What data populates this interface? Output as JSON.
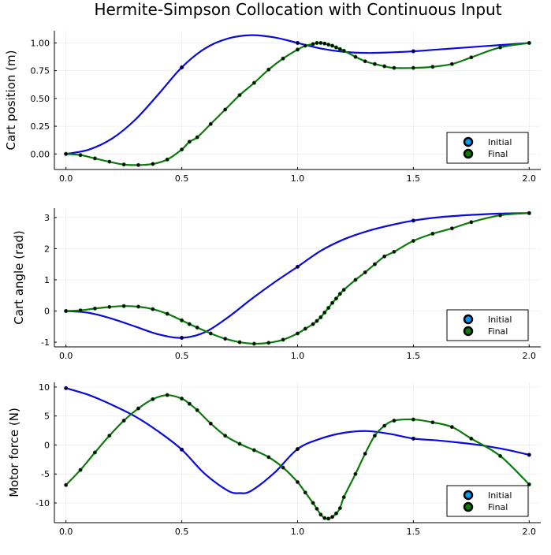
{
  "title": "Hermite-Simpson Collocation with Continuous Input",
  "colors": {
    "initial": "#0a0adb",
    "final": "#0c790c",
    "marker": "#000000"
  },
  "chart_data": [
    {
      "type": "line",
      "ylabel": "Cart position (m)",
      "xlim": [
        -0.05,
        2.05
      ],
      "ylim": [
        -0.14,
        1.11
      ],
      "xticks": [
        0,
        0.5,
        1,
        1.5,
        2
      ],
      "xtick_labels": [
        "0.0",
        "0.5",
        "1.0",
        "1.5",
        "2.0"
      ],
      "yticks": [
        0,
        0.25,
        0.5,
        0.75,
        1
      ],
      "ytick_labels": [
        "0.00",
        "0.25",
        "0.50",
        "0.75",
        "1.00"
      ],
      "legend": {
        "entries": [
          "Initial",
          "Final"
        ],
        "position": "bottom-right"
      },
      "series": [
        {
          "name": "Initial",
          "x": [
            0,
            0.1,
            0.2,
            0.3,
            0.4,
            0.5,
            0.6,
            0.7,
            0.8,
            0.9,
            1.0,
            1.1,
            1.2,
            1.3,
            1.4,
            1.5,
            1.6,
            1.7,
            1.8,
            1.9,
            2.0
          ],
          "y": [
            0,
            0.04,
            0.14,
            0.31,
            0.54,
            0.78,
            0.95,
            1.04,
            1.07,
            1.05,
            1.0,
            0.95,
            0.92,
            0.91,
            0.915,
            0.925,
            0.94,
            0.955,
            0.97,
            0.985,
            1.0
          ],
          "markers_x": [
            0,
            0.5,
            1.0,
            1.5,
            2.0
          ],
          "markers_y": [
            0,
            0.78,
            1.0,
            0.925,
            1.0
          ]
        },
        {
          "name": "Final",
          "x": [
            0,
            0.0625,
            0.125,
            0.1875,
            0.25,
            0.3125,
            0.375,
            0.4375,
            0.5,
            0.5333,
            0.5667,
            0.625,
            0.6875,
            0.75,
            0.8125,
            0.875,
            0.9375,
            1.0,
            1.0333,
            1.0667,
            1.0833,
            1.1,
            1.1167,
            1.1333,
            1.15,
            1.1667,
            1.1833,
            1.2,
            1.25,
            1.2917,
            1.3333,
            1.375,
            1.4167,
            1.5,
            1.5833,
            1.6667,
            1.75,
            1.875,
            2.0
          ],
          "y": [
            0,
            -0.01,
            -0.04,
            -0.07,
            -0.095,
            -0.1,
            -0.09,
            -0.05,
            0.04,
            0.11,
            0.15,
            0.27,
            0.4,
            0.53,
            0.64,
            0.76,
            0.86,
            0.94,
            0.975,
            0.99,
            1.0,
            1.0,
            0.995,
            0.985,
            0.975,
            0.96,
            0.945,
            0.93,
            0.875,
            0.835,
            0.81,
            0.79,
            0.775,
            0.775,
            0.785,
            0.81,
            0.87,
            0.96,
            1.0
          ],
          "markers_x": [
            0,
            0.0625,
            0.125,
            0.1875,
            0.25,
            0.3125,
            0.375,
            0.4375,
            0.5,
            0.5333,
            0.5667,
            0.625,
            0.6875,
            0.75,
            0.8125,
            0.875,
            0.9375,
            1.0,
            1.0333,
            1.0667,
            1.0833,
            1.1,
            1.1167,
            1.1333,
            1.15,
            1.1667,
            1.1833,
            1.2,
            1.25,
            1.2917,
            1.3333,
            1.375,
            1.4167,
            1.5,
            1.5833,
            1.6667,
            1.75,
            1.875,
            2.0
          ],
          "markers_y": [
            0,
            -0.01,
            -0.04,
            -0.07,
            -0.095,
            -0.1,
            -0.09,
            -0.05,
            0.04,
            0.11,
            0.15,
            0.27,
            0.4,
            0.53,
            0.64,
            0.76,
            0.86,
            0.94,
            0.975,
            0.99,
            1.0,
            1.0,
            0.995,
            0.985,
            0.975,
            0.96,
            0.945,
            0.93,
            0.875,
            0.835,
            0.81,
            0.79,
            0.775,
            0.775,
            0.785,
            0.81,
            0.87,
            0.96,
            1.0
          ]
        }
      ]
    },
    {
      "type": "line",
      "ylabel": "Cart angle (rad)",
      "xlim": [
        -0.05,
        2.05
      ],
      "ylim": [
        -1.15,
        3.3
      ],
      "xticks": [
        0,
        0.5,
        1,
        1.5,
        2
      ],
      "xtick_labels": [
        "0.0",
        "0.5",
        "1.0",
        "1.5",
        "2.0"
      ],
      "yticks": [
        -1,
        0,
        1,
        2,
        3
      ],
      "ytick_labels": [
        "-1",
        "0",
        "1",
        "2",
        "3"
      ],
      "legend": {
        "entries": [
          "Initial",
          "Final"
        ],
        "position": "bottom-right"
      },
      "series": [
        {
          "name": "Initial",
          "x": [
            0,
            0.1,
            0.2,
            0.3,
            0.4,
            0.5,
            0.6,
            0.7,
            0.8,
            0.9,
            1.0,
            1.1,
            1.2,
            1.3,
            1.4,
            1.5,
            1.6,
            1.7,
            1.8,
            1.9,
            2.0
          ],
          "y": [
            0,
            -0.06,
            -0.25,
            -0.5,
            -0.75,
            -0.86,
            -0.68,
            -0.2,
            0.38,
            0.92,
            1.42,
            1.93,
            2.3,
            2.56,
            2.75,
            2.9,
            3.0,
            3.06,
            3.1,
            3.13,
            3.14
          ],
          "markers_x": [
            0,
            0.5,
            1.0,
            1.5,
            2.0
          ],
          "markers_y": [
            0,
            -0.86,
            1.42,
            2.9,
            3.14
          ]
        },
        {
          "name": "Final",
          "x": [
            0,
            0.0625,
            0.125,
            0.1875,
            0.25,
            0.3125,
            0.375,
            0.4375,
            0.5,
            0.5333,
            0.5667,
            0.625,
            0.6875,
            0.75,
            0.8125,
            0.875,
            0.9375,
            1.0,
            1.0333,
            1.0667,
            1.0833,
            1.1,
            1.1167,
            1.1333,
            1.15,
            1.1667,
            1.1833,
            1.2,
            1.25,
            1.2917,
            1.3333,
            1.375,
            1.4167,
            1.5,
            1.5833,
            1.6667,
            1.75,
            1.875,
            2.0
          ],
          "y": [
            0,
            0.02,
            0.08,
            0.13,
            0.16,
            0.14,
            0.06,
            -0.09,
            -0.3,
            -0.42,
            -0.53,
            -0.72,
            -0.89,
            -1.0,
            -1.05,
            -1.02,
            -0.92,
            -0.72,
            -0.57,
            -0.42,
            -0.32,
            -0.2,
            -0.05,
            0.1,
            0.26,
            0.4,
            0.55,
            0.68,
            1.0,
            1.24,
            1.5,
            1.75,
            1.9,
            2.25,
            2.48,
            2.65,
            2.85,
            3.07,
            3.14
          ],
          "markers_x": [
            0,
            0.0625,
            0.125,
            0.1875,
            0.25,
            0.3125,
            0.375,
            0.4375,
            0.5,
            0.5333,
            0.5667,
            0.625,
            0.6875,
            0.75,
            0.8125,
            0.875,
            0.9375,
            1.0,
            1.0333,
            1.0667,
            1.0833,
            1.1,
            1.1167,
            1.1333,
            1.15,
            1.1667,
            1.1833,
            1.2,
            1.25,
            1.2917,
            1.3333,
            1.375,
            1.4167,
            1.5,
            1.5833,
            1.6667,
            1.75,
            1.875,
            2.0
          ],
          "markers_y": [
            0,
            0.02,
            0.08,
            0.13,
            0.16,
            0.14,
            0.06,
            -0.09,
            -0.3,
            -0.42,
            -0.53,
            -0.72,
            -0.89,
            -1.0,
            -1.05,
            -1.02,
            -0.92,
            -0.72,
            -0.57,
            -0.42,
            -0.32,
            -0.2,
            -0.05,
            0.1,
            0.26,
            0.4,
            0.55,
            0.68,
            1.0,
            1.24,
            1.5,
            1.75,
            1.9,
            2.25,
            2.48,
            2.65,
            2.85,
            3.07,
            3.14
          ]
        }
      ]
    },
    {
      "type": "line",
      "ylabel": "Motor force (N)",
      "xlim": [
        -0.05,
        2.05
      ],
      "ylim": [
        -13.4,
        10.8
      ],
      "xticks": [
        0,
        0.5,
        1,
        1.5,
        2
      ],
      "xtick_labels": [
        "0.0",
        "0.5",
        "1.0",
        "1.5",
        "2.0"
      ],
      "yticks": [
        -10,
        -5,
        0,
        5,
        10
      ],
      "ytick_labels": [
        "-10",
        "-5",
        "0",
        "5",
        "10"
      ],
      "legend": {
        "entries": [
          "Initial",
          "Final"
        ],
        "position": "bottom-right"
      },
      "series": [
        {
          "name": "Initial",
          "x": [
            0,
            0.1,
            0.2,
            0.3,
            0.4,
            0.5,
            0.6,
            0.7,
            0.75,
            0.8,
            0.9,
            1.0,
            1.1,
            1.2,
            1.3,
            1.4,
            1.5,
            1.6,
            1.7,
            1.8,
            1.9,
            2.0
          ],
          "y": [
            9.8,
            8.6,
            6.9,
            4.9,
            2.3,
            -0.8,
            -5.0,
            -7.9,
            -8.3,
            -7.9,
            -4.8,
            -0.7,
            1.1,
            2.1,
            2.4,
            1.9,
            1.1,
            0.8,
            0.4,
            -0.1,
            -0.8,
            -1.7
          ],
          "markers_x": [
            0,
            0.5,
            1.0,
            1.5,
            2.0
          ],
          "markers_y": [
            9.8,
            -0.8,
            -0.7,
            1.1,
            -1.7
          ]
        },
        {
          "name": "Final",
          "x": [
            0,
            0.0625,
            0.125,
            0.1875,
            0.25,
            0.3125,
            0.375,
            0.4375,
            0.5,
            0.5333,
            0.5667,
            0.625,
            0.6875,
            0.75,
            0.8125,
            0.875,
            0.9375,
            1.0,
            1.0333,
            1.0667,
            1.0833,
            1.1,
            1.1167,
            1.1333,
            1.15,
            1.1667,
            1.1833,
            1.2,
            1.25,
            1.2917,
            1.3333,
            1.375,
            1.4167,
            1.5,
            1.5833,
            1.6667,
            1.75,
            1.875,
            2.0
          ],
          "y": [
            -6.9,
            -4.3,
            -1.3,
            1.6,
            4.2,
            6.3,
            7.9,
            8.6,
            8.0,
            7.1,
            6.0,
            3.7,
            1.6,
            0.2,
            -0.9,
            -2.1,
            -3.9,
            -6.4,
            -8.2,
            -10.0,
            -11.0,
            -12.0,
            -12.6,
            -12.7,
            -12.4,
            -11.8,
            -10.9,
            -9.0,
            -5.0,
            -1.5,
            1.6,
            3.3,
            4.2,
            4.4,
            3.9,
            3.1,
            1.1,
            -1.9,
            -6.8
          ],
          "markers_x": [
            0,
            0.0625,
            0.125,
            0.1875,
            0.25,
            0.3125,
            0.375,
            0.4375,
            0.5,
            0.5333,
            0.5667,
            0.625,
            0.6875,
            0.75,
            0.8125,
            0.875,
            0.9375,
            1.0,
            1.0333,
            1.0667,
            1.0833,
            1.1,
            1.1167,
            1.1333,
            1.15,
            1.1667,
            1.1833,
            1.2,
            1.25,
            1.2917,
            1.3333,
            1.375,
            1.4167,
            1.5,
            1.5833,
            1.6667,
            1.75,
            1.875,
            2.0
          ],
          "markers_y": [
            -6.9,
            -4.3,
            -1.3,
            1.6,
            4.2,
            6.3,
            7.9,
            8.6,
            8.0,
            7.1,
            6.0,
            3.7,
            1.6,
            0.2,
            -0.9,
            -2.1,
            -3.9,
            -6.4,
            -8.2,
            -10.0,
            -11.0,
            -12.0,
            -12.6,
            -12.7,
            -12.4,
            -11.8,
            -10.9,
            -9.0,
            -5.0,
            -1.5,
            1.6,
            3.3,
            4.2,
            4.4,
            3.9,
            3.1,
            1.1,
            -1.9,
            -6.8
          ]
        }
      ]
    }
  ]
}
